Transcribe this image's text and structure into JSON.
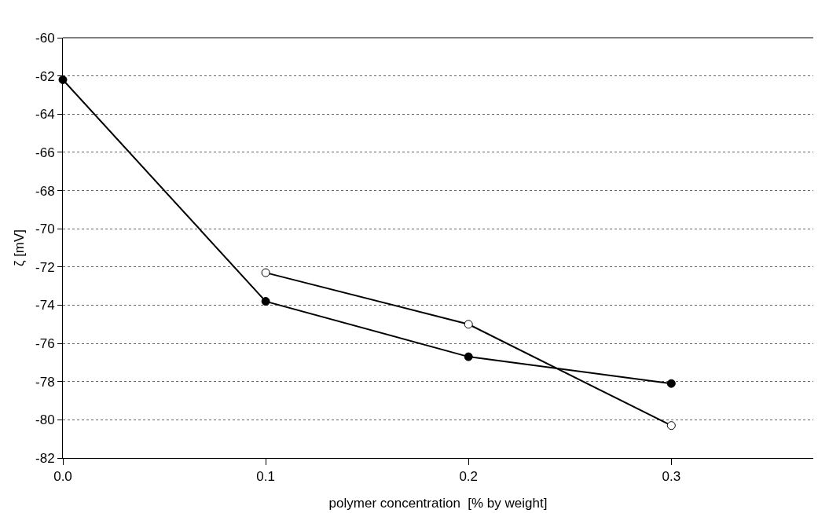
{
  "chart_data": {
    "type": "line",
    "xlabel": "polymer concentration  [% by weight]",
    "ylabel": "ζ [mV]",
    "series": [
      {
        "color": "#000000",
        "x": [
          0,
          0.1,
          0.2,
          0.3
        ],
        "values": [
          -62.2,
          -73.8,
          -76.7,
          -78.1
        ]
      },
      {
        "color": "#ffffff",
        "x": [
          0.1,
          0.2,
          0.3
        ],
        "values": [
          -72.3,
          -75.0,
          -80.3
        ]
      }
    ],
    "xlim": [
      0,
      0.37
    ],
    "xticks": [
      {
        "value": 0,
        "label": "0.0"
      },
      0.1,
      0.2,
      0.3
    ],
    "ylim": [
      -82,
      -60
    ],
    "yticks": [
      -82,
      -80,
      -78,
      -76,
      -74,
      -72,
      -70,
      -68,
      -66,
      -64,
      -62,
      -60
    ],
    "grid": "y",
    "marker": "circle",
    "line_style": "solid"
  }
}
